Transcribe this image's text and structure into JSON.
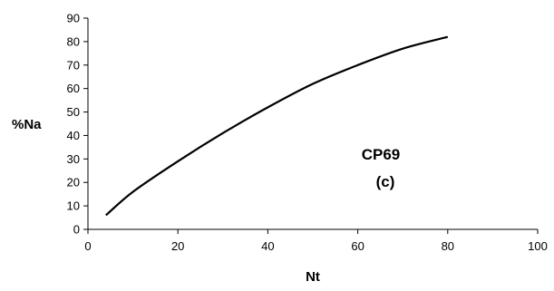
{
  "chart_data": {
    "type": "line",
    "xlabel": "Nt",
    "ylabel": "%Na",
    "xlim": [
      0,
      100
    ],
    "ylim": [
      0,
      90
    ],
    "xticks": [
      0,
      20,
      40,
      60,
      80,
      100
    ],
    "yticks": [
      0,
      10,
      20,
      30,
      40,
      50,
      60,
      70,
      80,
      90
    ],
    "grid": false,
    "annotations": [
      "CP69",
      "(c)"
    ],
    "series": [
      {
        "color": "#000000",
        "x": [
          4,
          10,
          20,
          30,
          40,
          50,
          60,
          70,
          80
        ],
        "y": [
          6,
          16,
          29,
          41,
          52,
          62,
          70,
          77,
          82
        ]
      }
    ]
  }
}
